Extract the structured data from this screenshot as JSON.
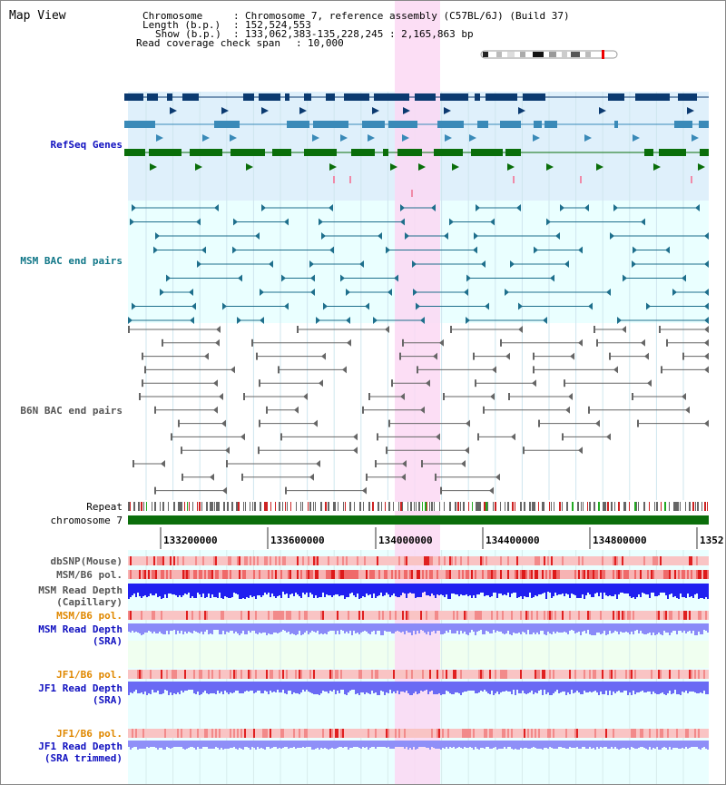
{
  "view_title": "Map View",
  "info": {
    "chromosome_key": "Chromosome",
    "chromosome_value": "Chromosome 7, reference assembly (C57BL/6J) (Build 37)",
    "length_key": "Length (b.p.)",
    "length_value": "152,524,553",
    "show_key": "Show (b.p.)",
    "show_value": "133,062,383-135,228,245 : 2,165,863 bp",
    "span_key": "Read coverage check span",
    "span_value": "10,000"
  },
  "tracks": {
    "refseq": "RefSeq Genes",
    "msm_bac": "MSM BAC end pairs",
    "b6n_bac": "B6N BAC end pairs",
    "repeat": "Repeat",
    "chromosome": "chromosome 7",
    "dbsnp": "dbSNP(Mouse)",
    "msm_b6_pol_1": "MSM/B6 pol.",
    "msm_depth_cap_1": "MSM Read Depth",
    "msm_depth_cap_2": "(Capillary)",
    "msm_b6_pol_2": "MSM/B6 pol.",
    "msm_depth_sra_1": "MSM Read Depth",
    "msm_depth_sra_2": "(SRA)",
    "jf1_b6_pol_1": "JF1/B6 pol.",
    "jf1_depth_sra_1": "JF1 Read Depth",
    "jf1_depth_sra_2": "(SRA)",
    "jf1_b6_pol_2": "JF1/B6 pol.",
    "jf1_depth_trim_1": "JF1 Read Depth",
    "jf1_depth_trim_2": "(SRA trimmed)"
  },
  "axis": {
    "ticks": [
      "133200000",
      "133600000",
      "134000000",
      "134400000",
      "134800000",
      "1352"
    ]
  },
  "colors": {
    "refseq_bg": "#dff0fb",
    "cyan_bg": "#eaffff",
    "green_bg": "#f0fff0",
    "highlight": "#fbd8f3",
    "refseq_dark": "#0b3a70",
    "refseq_mid": "#3a8ab8",
    "refseq_green": "#0a6e0a",
    "msm_bac": "#1e6f8c",
    "b6n_bac": "#666666",
    "chrom_bar": "#0b6e0b",
    "label_blue": "#1010c0",
    "label_teal": "#117788",
    "label_gray": "#555555",
    "label_orange": "#e08800"
  }
}
